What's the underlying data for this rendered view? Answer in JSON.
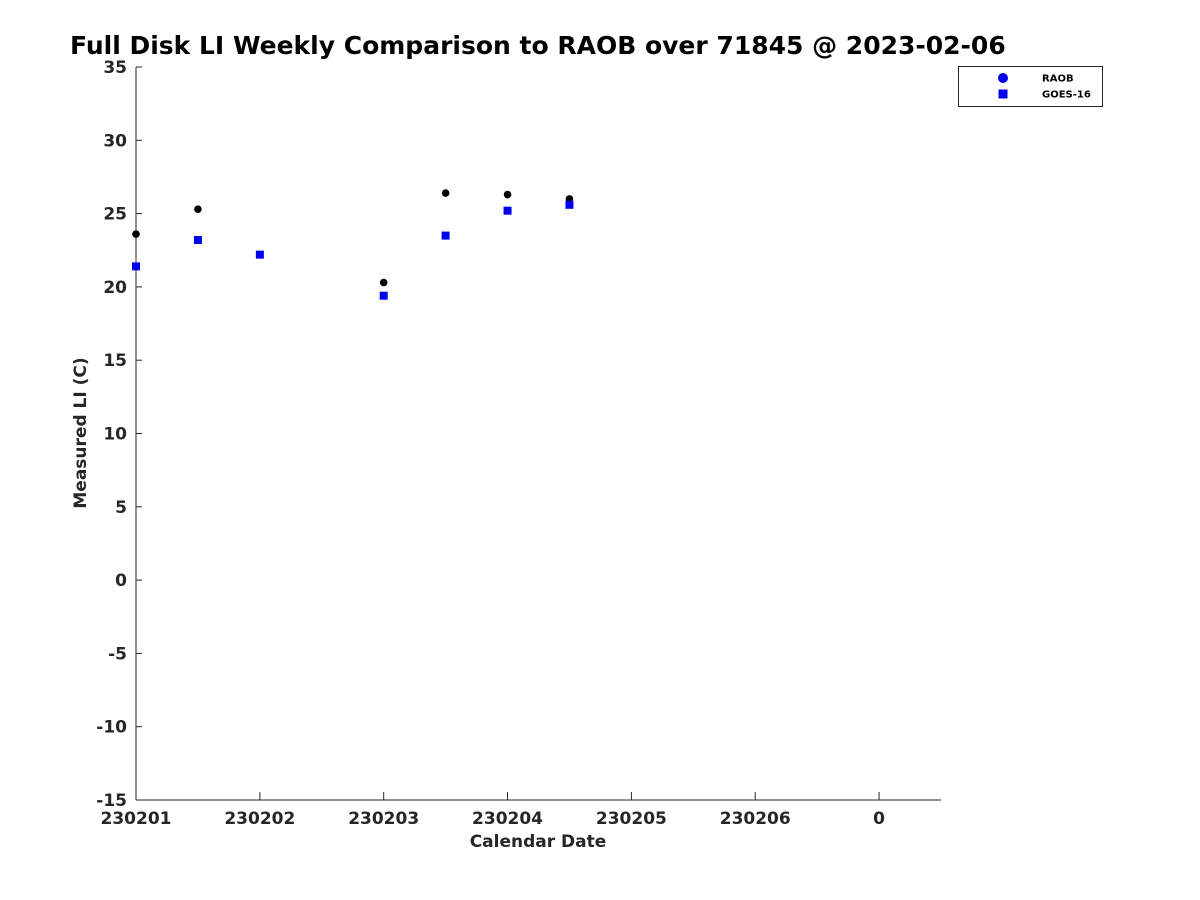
{
  "chart_data": {
    "type": "scatter",
    "title": "Full Disk LI Weekly Comparison to RAOB over 71845 @ 2023-02-06",
    "xlabel": "Calendar Date",
    "ylabel": "Measured LI (C)",
    "xlim": [
      0,
      6.5
    ],
    "ylim": [
      -15,
      35
    ],
    "x_ticks": [
      {
        "pos": 0,
        "label": "230201"
      },
      {
        "pos": 1,
        "label": "230202"
      },
      {
        "pos": 2,
        "label": "230203"
      },
      {
        "pos": 3,
        "label": "230204"
      },
      {
        "pos": 4,
        "label": "230205"
      },
      {
        "pos": 5,
        "label": "230206"
      },
      {
        "pos": 6,
        "label": "0"
      }
    ],
    "y_ticks": [
      35,
      30,
      25,
      20,
      15,
      10,
      5,
      0,
      -5,
      -10,
      -15
    ],
    "grid": false,
    "legend_position": "top-right",
    "series": [
      {
        "name": "RAOB",
        "marker": "circle",
        "color": "#000000",
        "legend_color": "#0000ee",
        "points": [
          {
            "x": 0.0,
            "y": 23.6
          },
          {
            "x": 0.5,
            "y": 25.3
          },
          {
            "x": 1.0,
            "y": 22.2
          },
          {
            "x": 2.0,
            "y": 20.3
          },
          {
            "x": 2.5,
            "y": 26.4
          },
          {
            "x": 3.0,
            "y": 26.3
          },
          {
            "x": 3.5,
            "y": 26.0
          }
        ]
      },
      {
        "name": "GOES-16",
        "marker": "square",
        "color": "#0000ee",
        "legend_color": "#0000ee",
        "points": [
          {
            "x": 0.0,
            "y": 21.4
          },
          {
            "x": 0.5,
            "y": 23.2
          },
          {
            "x": 1.0,
            "y": 22.2
          },
          {
            "x": 2.0,
            "y": 19.4
          },
          {
            "x": 2.5,
            "y": 23.5
          },
          {
            "x": 3.0,
            "y": 25.2
          },
          {
            "x": 3.5,
            "y": 25.6
          }
        ]
      }
    ]
  }
}
